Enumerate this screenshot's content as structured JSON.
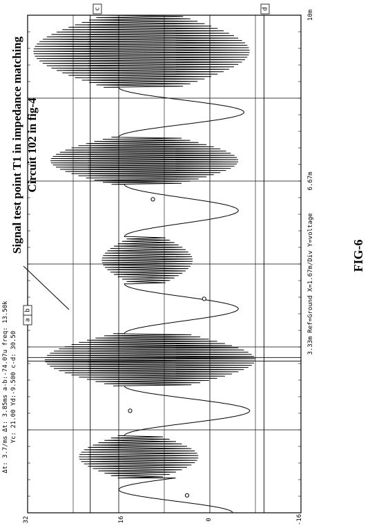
{
  "figure_label": "FIG-6",
  "annotation": {
    "line1": "Signal test point T1 in impedance matching",
    "line2": "Circuit 102 in fig-4"
  },
  "readouts": {
    "line1": "Δt: 3.7/ms  Δt: 3.85ms  a-b:-74.07u  freq: 13.50k",
    "line2": "Yc: 21.00  Yd:-9.500  c-d: 30.50"
  },
  "footer_text": "Ref=Ground  X=1.67m/Div Y=voltage",
  "cursor_labels": [
    "a",
    "b",
    "c",
    "d"
  ],
  "colors": {
    "ink": "#000000",
    "grid": "#000000",
    "paper": "#ffffff"
  },
  "chart_data": {
    "type": "line",
    "xlabel": "Ref=Ground  X=1.67m/Div Y=voltage",
    "ylabel": "",
    "x_tick_labels": [
      "3.33m",
      "6.67m",
      "10m"
    ],
    "x_ticks": [
      3.33,
      6.67,
      10
    ],
    "y_tick_labels": [
      "32",
      "16",
      "0",
      "-16"
    ],
    "y_ticks": [
      32,
      16,
      0,
      -16
    ],
    "xlim": [
      0,
      10
    ],
    "ylim": [
      -16,
      32
    ],
    "grid": true,
    "cursors": {
      "a": 3.05,
      "b": 3.12,
      "c": 21.0,
      "d": -9.5
    },
    "segments": [
      {
        "kind": "sine",
        "x0": 0.0,
        "x1": 0.7,
        "amp": 10,
        "offset": 6,
        "cycles": 0.75,
        "phase": -0.5
      },
      {
        "kind": "burst",
        "x0": 0.7,
        "x1": 1.55,
        "top": 23,
        "bottom": 2,
        "cycles": 18
      },
      {
        "kind": "sine",
        "x0": 1.55,
        "x1": 2.55,
        "amp": 11,
        "offset": 4,
        "cycles": 1.0,
        "phase": 0.0
      },
      {
        "kind": "burst",
        "x0": 2.55,
        "x1": 3.6,
        "top": 29,
        "bottom": -8,
        "cycles": 24
      },
      {
        "kind": "sine",
        "x0": 3.6,
        "x1": 4.6,
        "amp": 10,
        "offset": 5,
        "cycles": 1.0,
        "phase": 0.0
      },
      {
        "kind": "burst",
        "x0": 4.6,
        "x1": 5.55,
        "top": 19,
        "bottom": 3,
        "cycles": 20
      },
      {
        "kind": "sine",
        "x0": 5.55,
        "x1": 6.6,
        "amp": 10,
        "offset": 5,
        "cycles": 1.0,
        "phase": 0.0
      },
      {
        "kind": "burst",
        "x0": 6.6,
        "x1": 7.55,
        "top": 28,
        "bottom": -5,
        "cycles": 22
      },
      {
        "kind": "sine",
        "x0": 7.55,
        "x1": 8.55,
        "amp": 11,
        "offset": 5,
        "cycles": 1.0,
        "phase": 0.0
      },
      {
        "kind": "burst",
        "x0": 8.55,
        "x1": 10.0,
        "top": 31,
        "bottom": -7,
        "cycles": 30
      }
    ],
    "markers": [
      {
        "x": 0.35,
        "y": 4
      },
      {
        "x": 2.05,
        "y": 14
      },
      {
        "x": 4.3,
        "y": 1
      },
      {
        "x": 6.3,
        "y": 10
      }
    ]
  }
}
